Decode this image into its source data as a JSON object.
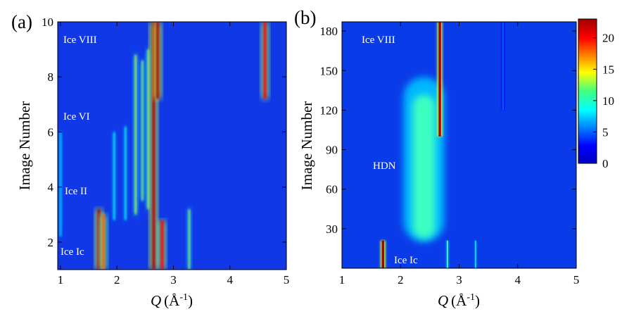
{
  "chart_data": [
    {
      "type": "heatmap",
      "panel_label": "(a)",
      "xlabel_symbol": "Q",
      "xlabel_unit": "(Å",
      "xlabel_sup": "-1",
      "xlabel_close": ")",
      "ylabel": "Image Number",
      "xlim": [
        0.95,
        5.0
      ],
      "ylim": [
        1,
        10
      ],
      "x_ticks": [
        "1",
        "2",
        "3",
        "4",
        "5"
      ],
      "y_ticks": [
        "2",
        "4",
        "6",
        "8",
        "10"
      ],
      "annotations": [
        "Ice VIII",
        "Ice VI",
        "Ice II",
        "Ice Ic"
      ],
      "peaks": [
        {
          "q": 1.0,
          "y0": 2.2,
          "y1": 6.0,
          "i": 8
        },
        {
          "q": 1.68,
          "y0": 1.0,
          "y1": 3.2,
          "i": 22
        },
        {
          "q": 1.76,
          "y0": 1.0,
          "y1": 3.0,
          "i": 18
        },
        {
          "q": 1.95,
          "y0": 2.8,
          "y1": 6.0,
          "i": 9
        },
        {
          "q": 2.15,
          "y0": 2.8,
          "y1": 6.2,
          "i": 9
        },
        {
          "q": 2.33,
          "y0": 3.0,
          "y1": 8.8,
          "i": 13
        },
        {
          "q": 2.45,
          "y0": 3.5,
          "y1": 8.6,
          "i": 12
        },
        {
          "q": 2.55,
          "y0": 3.2,
          "y1": 9.0,
          "i": 12
        },
        {
          "q": 2.65,
          "y0": 1.0,
          "y1": 10.0,
          "i": 22
        },
        {
          "q": 2.72,
          "y0": 7.2,
          "y1": 10.0,
          "i": 22
        },
        {
          "q": 2.8,
          "y0": 1.0,
          "y1": 2.8,
          "i": 20
        },
        {
          "q": 3.28,
          "y0": 1.0,
          "y1": 3.2,
          "i": 12
        },
        {
          "q": 4.62,
          "y0": 7.2,
          "y1": 10.0,
          "i": 20
        }
      ]
    },
    {
      "type": "heatmap",
      "panel_label": "(b)",
      "xlabel_symbol": "Q",
      "xlabel_unit": "(Å",
      "xlabel_sup": "-1",
      "xlabel_close": ")",
      "ylabel": "Image Number",
      "xlim": [
        1.0,
        5.0
      ],
      "ylim": [
        0,
        187
      ],
      "x_ticks": [
        "1",
        "2",
        "3",
        "4",
        "5"
      ],
      "y_ticks": [
        "30",
        "60",
        "90",
        "120",
        "150",
        "180"
      ],
      "annotations": [
        "Ice VIII",
        "HDN",
        "Ice Ic"
      ],
      "colorbar": {
        "min": 0,
        "max": 23,
        "ticks": [
          "0",
          "5",
          "10",
          "15",
          "20"
        ]
      },
      "features": [
        {
          "kind": "hdn_band",
          "q": 2.4,
          "y0": 20,
          "y1": 145,
          "i": 10
        },
        {
          "kind": "peak",
          "q": 2.67,
          "y0": 100,
          "y1": 187,
          "i": 22
        },
        {
          "kind": "peak",
          "q": 1.7,
          "y0": 0,
          "y1": 21,
          "i": 22
        },
        {
          "kind": "peak",
          "q": 2.8,
          "y0": 0,
          "y1": 21,
          "i": 10
        },
        {
          "kind": "peak",
          "q": 3.28,
          "y0": 0,
          "y1": 21,
          "i": 8
        },
        {
          "kind": "peak",
          "q": 3.75,
          "y0": 120,
          "y1": 187,
          "i": 5
        }
      ]
    }
  ]
}
